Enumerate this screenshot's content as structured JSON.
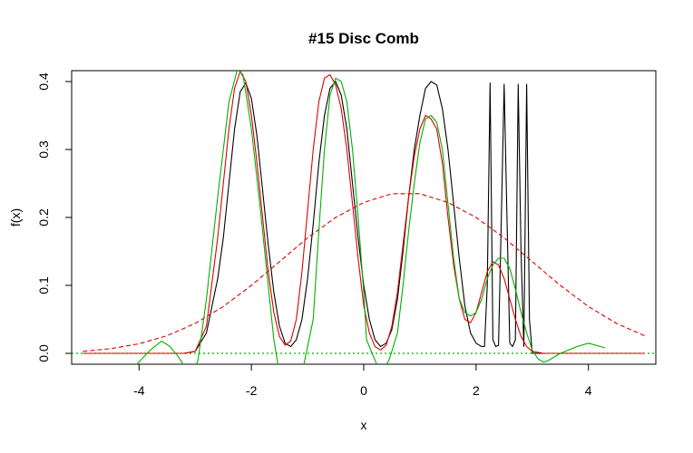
{
  "chart_data": {
    "type": "line",
    "title": "#15 Disc Comb",
    "xlabel": "x",
    "ylabel": "f(x)",
    "xlim": [
      -5.2,
      5.2
    ],
    "ylim": [
      -0.016,
      0.416
    ],
    "x_ticks": [
      -4,
      -2,
      0,
      2,
      4
    ],
    "x_tick_labels": [
      "-4",
      "-2",
      "0",
      "2",
      "4"
    ],
    "y_ticks": [
      0.0,
      0.1,
      0.2,
      0.3,
      0.4
    ],
    "y_tick_labels": [
      "0.0",
      "0.1",
      "0.2",
      "0.3",
      "0.4"
    ],
    "grid": false,
    "legend": "none",
    "colors": {
      "true_density": "#000000",
      "estimate_red": "#e00000",
      "normal_reference": "#e00000",
      "estimate_green": "#00b000",
      "zero_line": "#00b000"
    },
    "series": [
      {
        "key": "true_density",
        "style": "solid",
        "x": [
          -5,
          -3.2,
          -3.0,
          -2.8,
          -2.6,
          -2.5,
          -2.4,
          -2.3,
          -2.2,
          -2.1,
          -2.0,
          -1.9,
          -1.8,
          -1.7,
          -1.6,
          -1.5,
          -1.4,
          -1.3,
          -1.2,
          -1.1,
          -1.0,
          -0.9,
          -0.8,
          -0.7,
          -0.6,
          -0.5,
          -0.4,
          -0.3,
          -0.2,
          -0.1,
          0.0,
          0.1,
          0.2,
          0.3,
          0.4,
          0.5,
          0.6,
          0.7,
          0.8,
          0.9,
          1.0,
          1.1,
          1.2,
          1.3,
          1.4,
          1.5,
          1.6,
          1.7,
          1.8,
          1.9,
          2.0,
          2.1,
          2.15,
          2.2,
          2.25,
          2.3,
          2.35,
          2.4,
          2.45,
          2.5,
          2.55,
          2.6,
          2.65,
          2.7,
          2.75,
          2.8,
          2.85,
          2.9,
          2.95,
          3.0,
          3.2,
          5
        ],
        "y": [
          0.0,
          0.0,
          0.003,
          0.03,
          0.11,
          0.17,
          0.25,
          0.33,
          0.385,
          0.398,
          0.375,
          0.32,
          0.24,
          0.16,
          0.09,
          0.04,
          0.015,
          0.01,
          0.02,
          0.05,
          0.11,
          0.19,
          0.28,
          0.35,
          0.39,
          0.4,
          0.38,
          0.33,
          0.25,
          0.17,
          0.1,
          0.05,
          0.02,
          0.01,
          0.015,
          0.035,
          0.08,
          0.15,
          0.23,
          0.3,
          0.35,
          0.39,
          0.4,
          0.395,
          0.36,
          0.3,
          0.22,
          0.14,
          0.07,
          0.03,
          0.015,
          0.01,
          0.01,
          0.1,
          0.398,
          0.02,
          0.01,
          0.012,
          0.2,
          0.396,
          0.2,
          0.015,
          0.01,
          0.02,
          0.396,
          0.15,
          0.01,
          0.396,
          0.05,
          0.0,
          0.0,
          0.0
        ]
      },
      {
        "key": "estimate_red",
        "style": "solid",
        "x": [
          -5,
          -3.2,
          -3.0,
          -2.8,
          -2.6,
          -2.4,
          -2.3,
          -2.2,
          -2.1,
          -2.0,
          -1.9,
          -1.8,
          -1.7,
          -1.6,
          -1.5,
          -1.4,
          -1.3,
          -1.2,
          -1.1,
          -1.0,
          -0.9,
          -0.8,
          -0.7,
          -0.6,
          -0.5,
          -0.4,
          -0.3,
          -0.2,
          -0.1,
          0.0,
          0.1,
          0.2,
          0.3,
          0.4,
          0.5,
          0.6,
          0.7,
          0.8,
          0.9,
          1.0,
          1.1,
          1.2,
          1.3,
          1.4,
          1.5,
          1.6,
          1.7,
          1.8,
          1.9,
          2.0,
          2.1,
          2.2,
          2.3,
          2.4,
          2.5,
          2.6,
          2.7,
          2.8,
          2.9,
          3.0,
          3.2,
          5
        ],
        "y": [
          0.0,
          0.0,
          0.003,
          0.04,
          0.17,
          0.33,
          0.39,
          0.415,
          0.4,
          0.35,
          0.28,
          0.2,
          0.12,
          0.06,
          0.025,
          0.012,
          0.018,
          0.05,
          0.12,
          0.21,
          0.3,
          0.37,
          0.405,
          0.41,
          0.395,
          0.36,
          0.3,
          0.22,
          0.14,
          0.07,
          0.03,
          0.01,
          0.005,
          0.012,
          0.04,
          0.09,
          0.16,
          0.23,
          0.29,
          0.33,
          0.35,
          0.345,
          0.33,
          0.28,
          0.2,
          0.13,
          0.08,
          0.05,
          0.045,
          0.06,
          0.09,
          0.12,
          0.135,
          0.13,
          0.11,
          0.08,
          0.05,
          0.025,
          0.01,
          0.003,
          0.0,
          0.0
        ]
      },
      {
        "key": "normal_reference",
        "style": "dashed",
        "x": [
          -5.0,
          -4.5,
          -4.0,
          -3.5,
          -3.0,
          -2.5,
          -2.0,
          -1.5,
          -1.0,
          -0.5,
          0.0,
          0.5,
          1.0,
          1.5,
          2.0,
          2.5,
          3.0,
          3.5,
          4.0,
          4.5,
          5.0
        ],
        "y": [
          0.003,
          0.007,
          0.014,
          0.026,
          0.044,
          0.069,
          0.1,
          0.135,
          0.17,
          0.2,
          0.222,
          0.235,
          0.235,
          0.222,
          0.2,
          0.17,
          0.135,
          0.1,
          0.069,
          0.044,
          0.026
        ]
      },
      {
        "key": "estimate_green",
        "style": "solid",
        "x": [
          -4.2,
          -3.8,
          -3.6,
          -3.45,
          -3.3,
          -3.2,
          -3.05,
          -2.95,
          -2.8,
          -2.6,
          -2.4,
          -2.25,
          -2.15,
          -2.0,
          -1.85,
          -1.7,
          -1.6,
          -1.5,
          -1.1,
          -0.9,
          -0.8,
          -0.7,
          -0.6,
          -0.5,
          -0.4,
          -0.3,
          -0.2,
          -0.1,
          0.0,
          0.05,
          0.3,
          0.45,
          0.6,
          0.7,
          0.8,
          0.9,
          1.0,
          1.1,
          1.2,
          1.3,
          1.4,
          1.5,
          1.6,
          1.7,
          1.8,
          1.9,
          2.0,
          2.1,
          2.2,
          2.3,
          2.4,
          2.5,
          2.6,
          2.7,
          2.8,
          2.9,
          3.0,
          3.1,
          3.2,
          3.3,
          3.5,
          3.8,
          4.0,
          4.3
        ],
        "y": [
          -0.03,
          0.005,
          0.018,
          0.01,
          -0.005,
          -0.018,
          -0.03,
          -0.01,
          0.08,
          0.23,
          0.37,
          0.418,
          0.41,
          0.33,
          0.22,
          0.1,
          0.02,
          -0.03,
          -0.03,
          0.05,
          0.18,
          0.3,
          0.38,
          0.405,
          0.4,
          0.37,
          0.3,
          0.2,
          0.09,
          0.02,
          -0.03,
          -0.01,
          0.03,
          0.1,
          0.18,
          0.25,
          0.31,
          0.345,
          0.35,
          0.34,
          0.3,
          0.22,
          0.14,
          0.08,
          0.06,
          0.055,
          0.06,
          0.08,
          0.11,
          0.13,
          0.14,
          0.14,
          0.125,
          0.095,
          0.06,
          0.03,
          0.005,
          -0.008,
          -0.013,
          -0.01,
          0.0,
          0.01,
          0.015,
          0.008
        ]
      }
    ],
    "reference_lines": [
      {
        "key": "zero_line",
        "y": 0.0,
        "style": "dotted"
      }
    ]
  }
}
